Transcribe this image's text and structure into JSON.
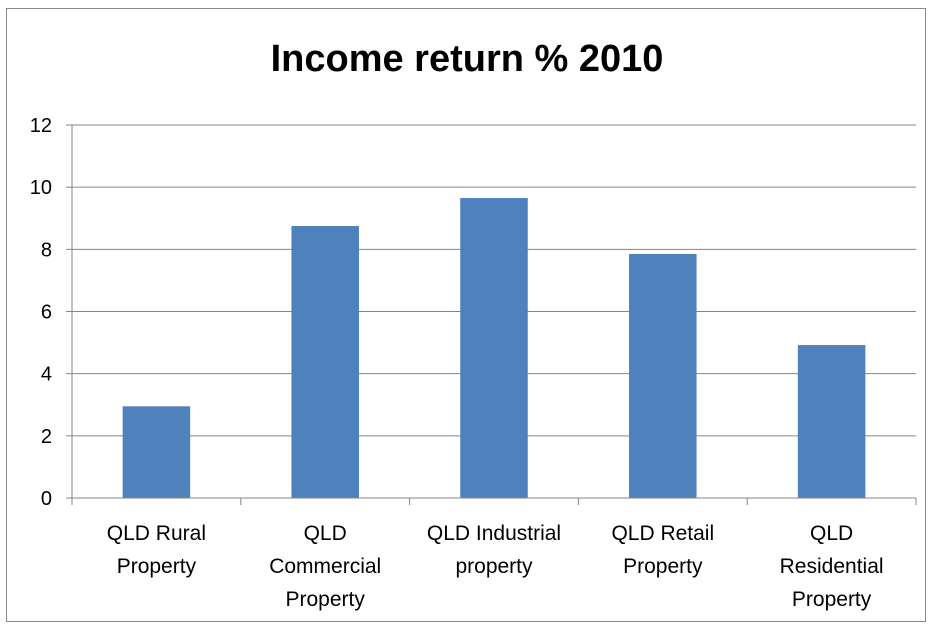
{
  "chart_data": {
    "type": "bar",
    "title": "Income return % 2010",
    "xlabel": "",
    "ylabel": "",
    "categories": [
      [
        "QLD Rural",
        "Property"
      ],
      [
        "QLD",
        "Commercial",
        "Property"
      ],
      [
        "QLD Industrial",
        "property"
      ],
      [
        "QLD Retail",
        "Property"
      ],
      [
        "QLD",
        "Residential",
        "Property"
      ]
    ],
    "values": [
      2.95,
      8.75,
      9.65,
      7.85,
      4.92
    ],
    "ylim": [
      0,
      12
    ],
    "yticks": [
      "0",
      "2",
      "4",
      "6",
      "8",
      "10",
      "12"
    ],
    "grid": true,
    "legend": "none",
    "bar_color": "#4f81bd",
    "grid_color": "#868686"
  }
}
